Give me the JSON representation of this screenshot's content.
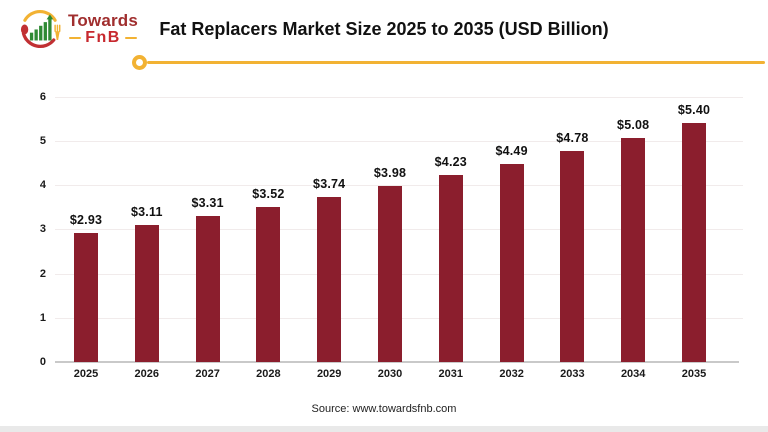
{
  "brand": {
    "name_top": "Towards",
    "name_bottom": "FnB",
    "emblem_icon": "bar-growth-spoon-fork-emblem",
    "colors": {
      "red": "#C13033",
      "dark_red_text": "#A02E2E",
      "bright_red_text": "#C7282E",
      "green": "#2F8A34",
      "yellow": "#F2B233"
    }
  },
  "title": "Fat Replacers Market Size 2025 to 2035 (USD Billion)",
  "divider": {
    "color": "#F2B233"
  },
  "chart_data": {
    "type": "bar",
    "title": "Fat Replacers Market Size 2025 to 2035 (USD Billion)",
    "categories": [
      "2025",
      "2026",
      "2027",
      "2028",
      "2029",
      "2030",
      "2031",
      "2032",
      "2033",
      "2034",
      "2035"
    ],
    "values": [
      2.93,
      3.11,
      3.31,
      3.52,
      3.74,
      3.98,
      4.23,
      4.49,
      4.78,
      5.08,
      5.4
    ],
    "value_labels": [
      "$2.93",
      "$3.11",
      "$3.31",
      "$3.52",
      "$3.74",
      "$3.98",
      "$4.23",
      "$4.49",
      "$4.78",
      "$5.08",
      "$5.40"
    ],
    "xlabel": "",
    "ylabel": "",
    "ylim": [
      0,
      6
    ],
    "yticks": [
      0,
      1,
      2,
      3,
      4,
      5,
      6
    ],
    "bar_color": "#8B1E2D",
    "grid": true,
    "legend_position": "none"
  },
  "footer": {
    "source": "Source: www.towardsfnb.com"
  }
}
